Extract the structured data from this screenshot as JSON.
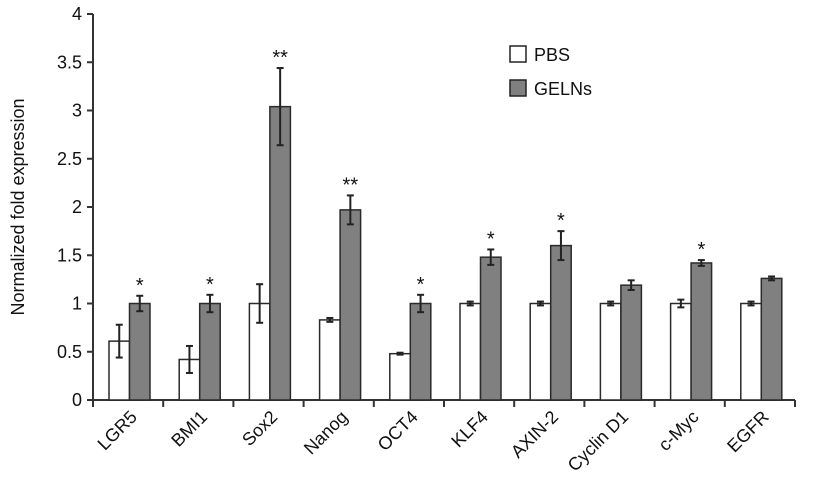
{
  "chart_data": {
    "type": "bar",
    "title": "",
    "xlabel": "",
    "ylabel": "Normalized fold expression",
    "ylim": [
      0,
      4
    ],
    "yticks": [
      "0",
      "0.5",
      "1",
      "1.5",
      "2",
      "2.5",
      "3",
      "3.5",
      "4"
    ],
    "grid": false,
    "legend_position": "top-center",
    "categories": [
      "LGR5",
      "BMI1",
      "Sox2",
      "Nanog",
      "OCT4",
      "KLF4",
      "AXIN-2",
      "Cyclin D1",
      "c-Myc",
      "EGFR"
    ],
    "series": [
      {
        "name": "PBS",
        "color": "#ffffff",
        "values": [
          0.61,
          0.42,
          1.0,
          0.83,
          0.48,
          1.0,
          1.0,
          1.0,
          1.0,
          1.0
        ],
        "errors": [
          0.17,
          0.14,
          0.2,
          0.02,
          0.01,
          0.02,
          0.02,
          0.02,
          0.04,
          0.02
        ]
      },
      {
        "name": "GELNs",
        "color": "#808080",
        "values": [
          1.0,
          1.0,
          3.04,
          1.97,
          1.0,
          1.48,
          1.6,
          1.19,
          1.42,
          1.26
        ],
        "errors": [
          0.08,
          0.09,
          0.4,
          0.15,
          0.09,
          0.08,
          0.15,
          0.05,
          0.03,
          0.02
        ]
      }
    ],
    "annotations": [
      "*",
      "*",
      "**",
      "**",
      "*",
      "*",
      "*",
      "",
      "*",
      ""
    ]
  }
}
